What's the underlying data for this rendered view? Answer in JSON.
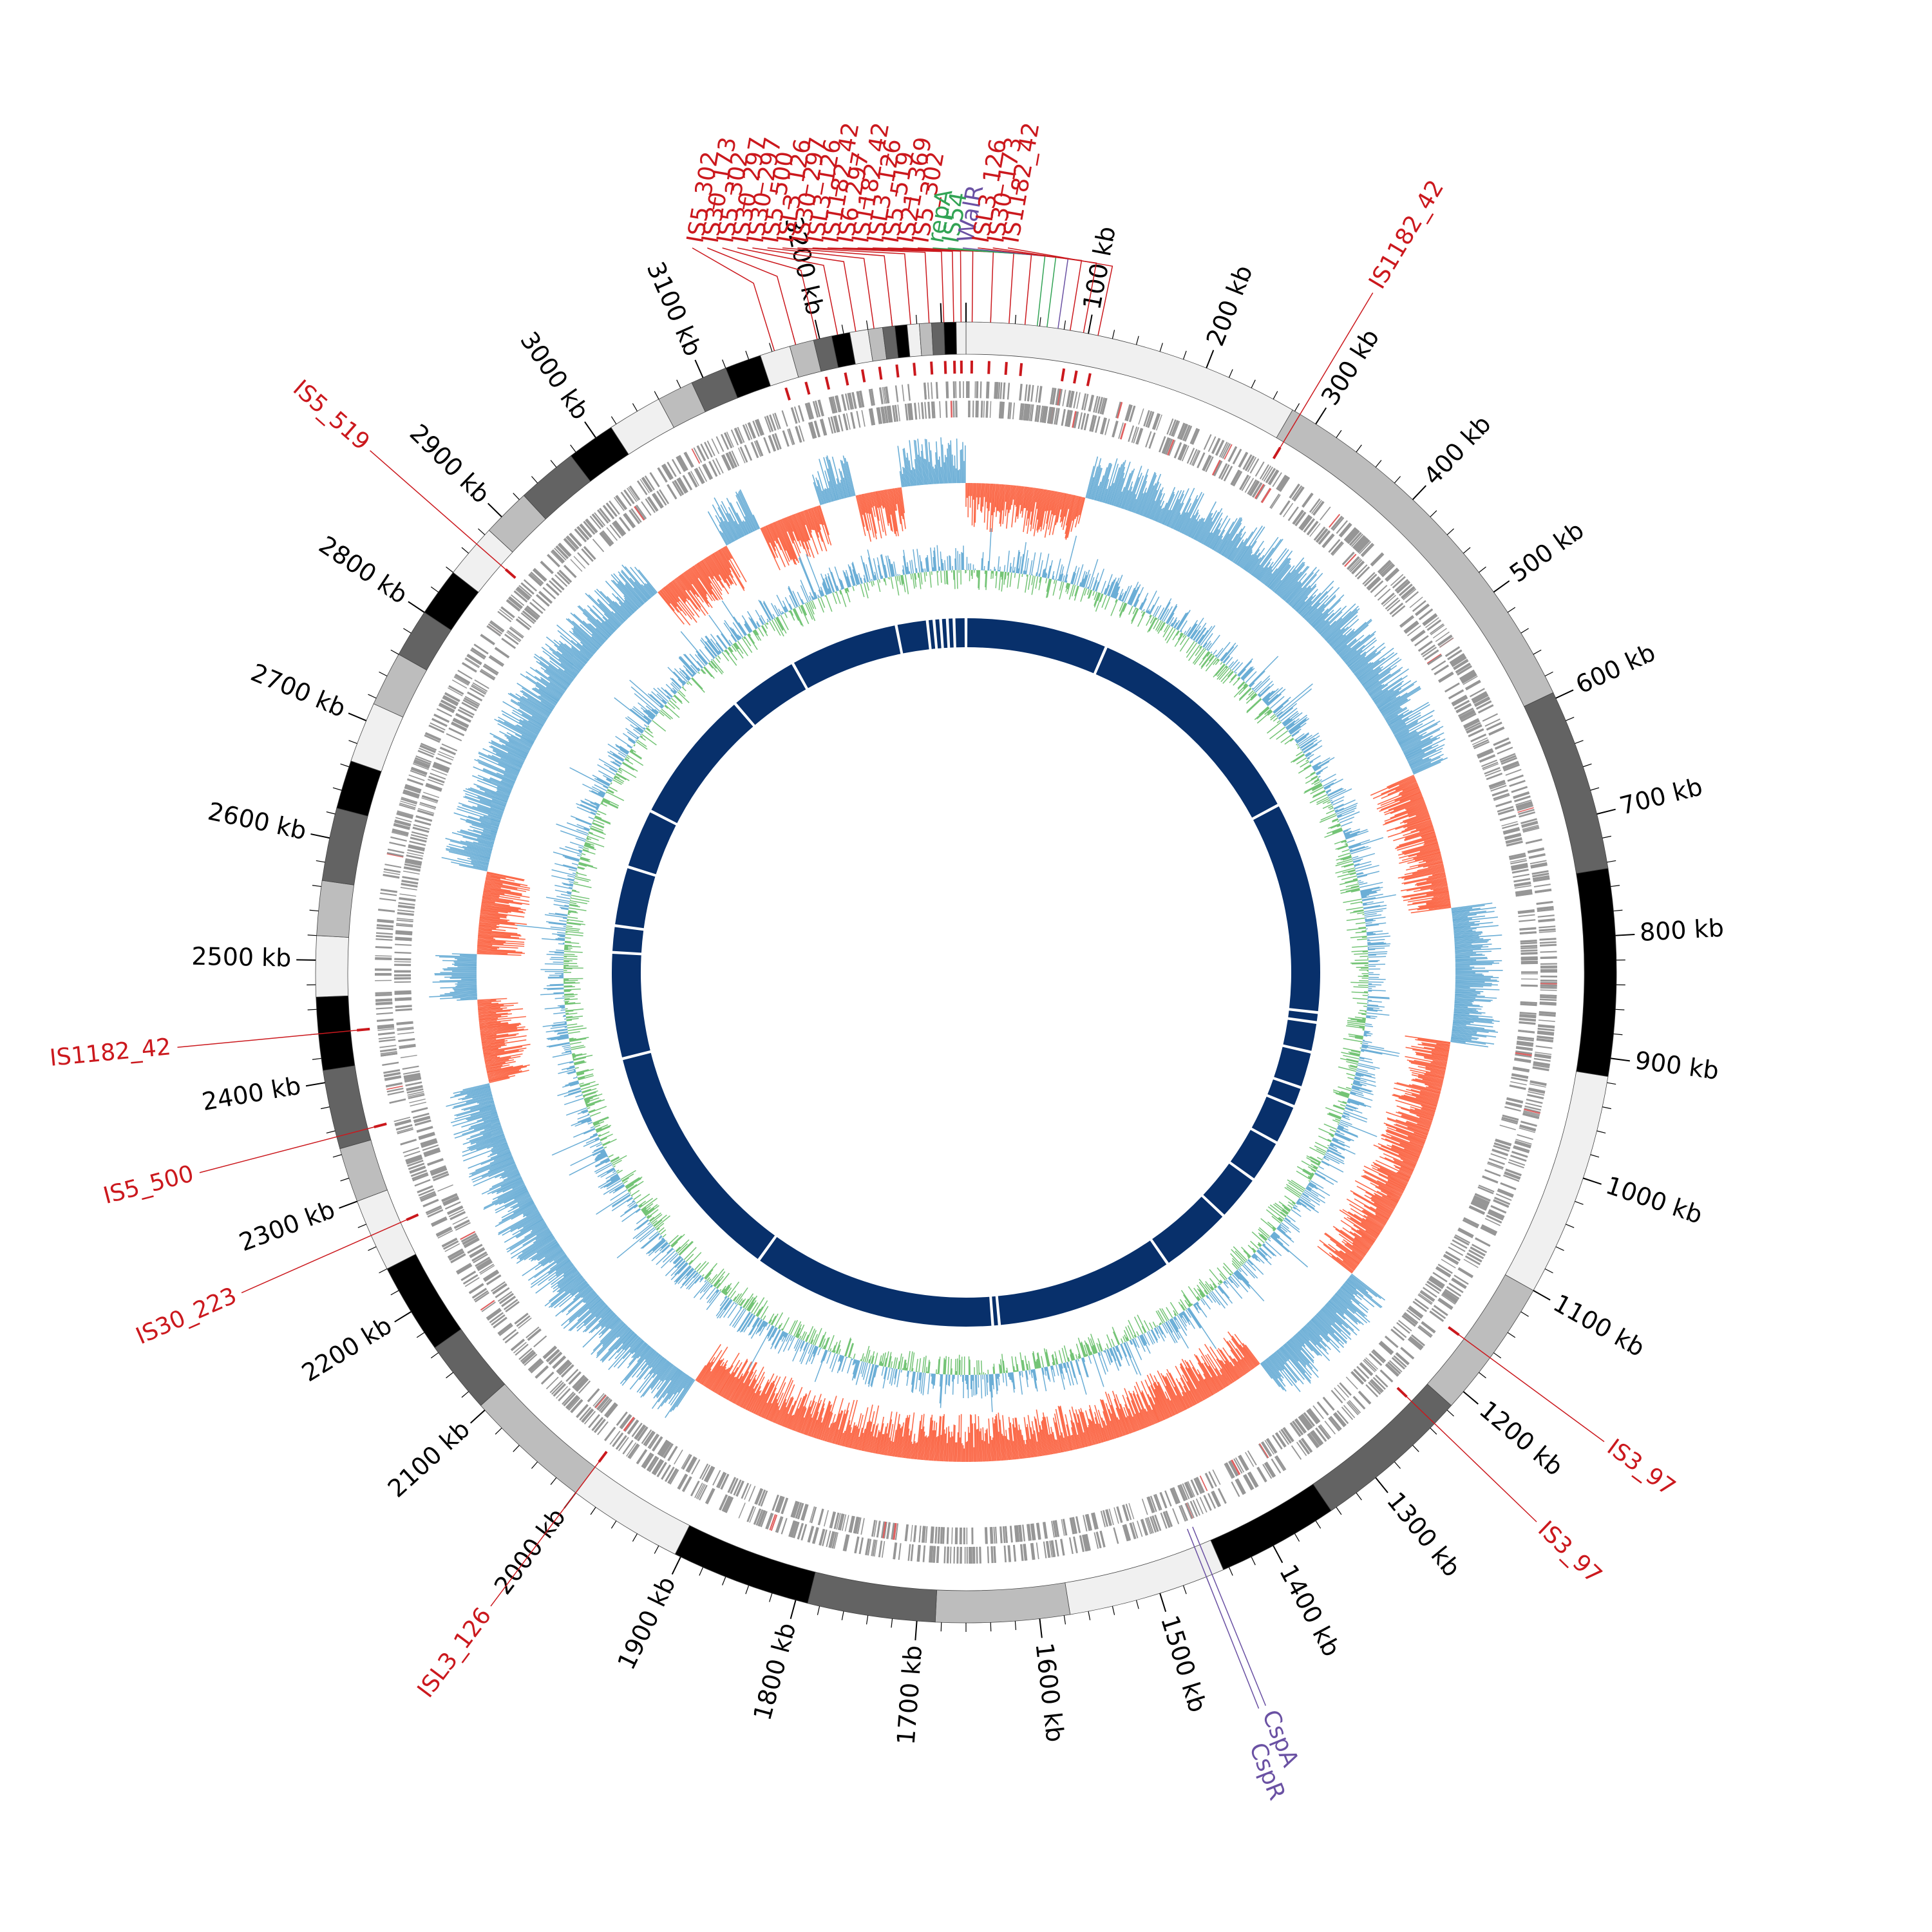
{
  "genome": {
    "total_kb": 3320,
    "tick_labels": [
      "100 kb",
      "200 kb",
      "300 kb",
      "400 kb",
      "500 kb",
      "600 kb",
      "700 kb",
      "800 kb",
      "900 kb",
      "1000 kb",
      "1100 kb",
      "1200 kb",
      "1300 kb",
      "1400 kb",
      "1500 kb",
      "1600 kb",
      "1700 kb",
      "1800 kb",
      "1900 kb",
      "2000 kb",
      "2100 kb",
      "2200 kb",
      "2300 kb",
      "2400 kb",
      "2500 kb",
      "2600 kb",
      "2700 kb",
      "2800 kb",
      "2900 kb",
      "3000 kb",
      "3100 kb",
      "3200 kb"
    ]
  },
  "contig_ring": {
    "colors": [
      "#f0f0f0",
      "#bdbdbd",
      "#636363",
      "#000000"
    ],
    "segments_kb": [
      {
        "start": 0,
        "end": 278
      },
      {
        "start": 278,
        "end": 595
      },
      {
        "start": 595,
        "end": 745
      },
      {
        "start": 745,
        "end": 915
      },
      {
        "start": 915,
        "end": 1100
      },
      {
        "start": 1100,
        "end": 1215
      },
      {
        "start": 1215,
        "end": 1345
      },
      {
        "start": 1345,
        "end": 1445
      },
      {
        "start": 1445,
        "end": 1575
      },
      {
        "start": 1575,
        "end": 1685
      },
      {
        "start": 1685,
        "end": 1790
      },
      {
        "start": 1790,
        "end": 1905
      },
      {
        "start": 1905,
        "end": 2000
      },
      {
        "start": 2000,
        "end": 2105
      },
      {
        "start": 2105,
        "end": 2165
      },
      {
        "start": 2165,
        "end": 2240
      },
      {
        "start": 2240,
        "end": 2300
      },
      {
        "start": 2300,
        "end": 2345
      },
      {
        "start": 2345,
        "end": 2410
      },
      {
        "start": 2410,
        "end": 2470
      },
      {
        "start": 2470,
        "end": 2520
      },
      {
        "start": 2520,
        "end": 2565
      },
      {
        "start": 2565,
        "end": 2625
      },
      {
        "start": 2625,
        "end": 2665
      },
      {
        "start": 2665,
        "end": 2715
      },
      {
        "start": 2715,
        "end": 2760
      },
      {
        "start": 2760,
        "end": 2800
      },
      {
        "start": 2800,
        "end": 2840
      },
      {
        "start": 2840,
        "end": 2885
      },
      {
        "start": 2885,
        "end": 2925
      },
      {
        "start": 2925,
        "end": 2975
      },
      {
        "start": 2975,
        "end": 3015
      },
      {
        "start": 3015,
        "end": 3060
      },
      {
        "start": 3060,
        "end": 3090
      },
      {
        "start": 3090,
        "end": 3120
      },
      {
        "start": 3120,
        "end": 3150
      },
      {
        "start": 3150,
        "end": 3175
      },
      {
        "start": 3175,
        "end": 3195
      },
      {
        "start": 3195,
        "end": 3210
      },
      {
        "start": 3210,
        "end": 3225
      },
      {
        "start": 3225,
        "end": 3240
      },
      {
        "start": 3240,
        "end": 3252
      },
      {
        "start": 3252,
        "end": 3262
      },
      {
        "start": 3262,
        "end": 3272
      },
      {
        "start": 3272,
        "end": 3282
      },
      {
        "start": 3282,
        "end": 3292
      },
      {
        "start": 3292,
        "end": 3302
      },
      {
        "start": 3302,
        "end": 3312
      },
      {
        "start": 3312,
        "end": 3320
      }
    ]
  },
  "inner_ring_gaps_kb": [
    215,
    570,
    890,
    905,
    950,
    1005,
    1035,
    1095,
    1160,
    1230,
    1340,
    1610,
    1620,
    1990,
    2360,
    2520,
    2560,
    2650,
    2740,
    2945,
    3050,
    3215,
    3262,
    3272,
    3282,
    3292,
    3302
  ],
  "track_colors": {
    "cds_track": "#969696",
    "gc_skew_positive": "#6baed6",
    "gc_skew_negative": "#fb6a4a",
    "gc_content": "#74c476",
    "gc_content_high": "#6baed6",
    "inner_ring": "#08306b",
    "mobile_element": "#cb181d",
    "gene_label": "#6a51a3",
    "rep_label": "#31a354"
  },
  "labels": [
    {
      "text": "IS5_302",
      "kb": 3162,
      "type": "mobile"
    },
    {
      "text": "IS30_173",
      "kb": 3180,
      "type": "mobile"
    },
    {
      "text": "IS5_302",
      "kb": 3198,
      "type": "mobile"
    },
    {
      "text": "IS30_297",
      "kb": 3215,
      "type": "mobile"
    },
    {
      "text": "IS30_297",
      "kb": 3230,
      "type": "mobile"
    },
    {
      "text": "IS5_500",
      "kb": 3245,
      "type": "mobile"
    },
    {
      "text": "ISL3_126",
      "kb": 3260,
      "type": "mobile"
    },
    {
      "text": "IS30_297",
      "kb": 3275,
      "type": "mobile"
    },
    {
      "text": "ISL3_126",
      "kb": 3290,
      "type": "mobile"
    },
    {
      "text": "IS1182_42",
      "kb": 3302,
      "type": "mobile"
    },
    {
      "text": "IS6_297",
      "kb": 3310,
      "type": "mobile"
    },
    {
      "text": "IS1182_42",
      "kb": 3316,
      "type": "mobile"
    },
    {
      "text": "ISL3_126",
      "kb": 5,
      "type": "mobile"
    },
    {
      "text": "IS5_519",
      "kb": 20,
      "type": "mobile"
    },
    {
      "text": "IS21_369",
      "kb": 35,
      "type": "mobile"
    },
    {
      "text": "IS5_302",
      "kb": 48,
      "type": "mobile"
    },
    {
      "text": "repA",
      "kb": 58,
      "type": "rep"
    },
    {
      "text": "IS54",
      "kb": 66,
      "type": "rep"
    },
    {
      "text": "WalR",
      "kb": 75,
      "type": "gene"
    },
    {
      "text": "ISL3_126",
      "kb": 85,
      "type": "mobile"
    },
    {
      "text": "IS30_173",
      "kb": 96,
      "type": "mobile"
    },
    {
      "text": "IS1182_42",
      "kb": 108,
      "type": "mobile"
    },
    {
      "text": "IS1182_42",
      "kb": 285,
      "type": "mobile"
    },
    {
      "text": "IS3_97",
      "kb": 1165,
      "type": "mobile"
    },
    {
      "text": "IS3_97",
      "kb": 1235,
      "type": "mobile"
    },
    {
      "text": "CspA",
      "kb": 1455,
      "type": "gene"
    },
    {
      "text": "CspR",
      "kb": 1460,
      "type": "gene"
    },
    {
      "text": "ISL3_126",
      "kb": 2000,
      "type": "mobile"
    },
    {
      "text": "IS30_223",
      "kb": 2270,
      "type": "mobile"
    },
    {
      "text": "IS5_500",
      "kb": 2355,
      "type": "mobile"
    },
    {
      "text": "IS1182_42",
      "kb": 2440,
      "type": "mobile"
    },
    {
      "text": "IS5_519",
      "kb": 2870,
      "type": "mobile"
    }
  ],
  "gc_skew_profile": [
    {
      "start": 0,
      "end": 130,
      "sign": -1
    },
    {
      "start": 130,
      "end": 610,
      "sign": 1
    },
    {
      "start": 610,
      "end": 760,
      "sign": -1
    },
    {
      "start": 760,
      "end": 905,
      "sign": 1
    },
    {
      "start": 905,
      "end": 1180,
      "sign": -1
    },
    {
      "start": 1180,
      "end": 1320,
      "sign": 1
    },
    {
      "start": 1320,
      "end": 1970,
      "sign": -1
    },
    {
      "start": 1970,
      "end": 2370,
      "sign": 1
    },
    {
      "start": 2370,
      "end": 2460,
      "sign": -1
    },
    {
      "start": 2460,
      "end": 2510,
      "sign": 1
    },
    {
      "start": 2510,
      "end": 2600,
      "sign": -1
    },
    {
      "start": 2600,
      "end": 2960,
      "sign": 1
    },
    {
      "start": 2960,
      "end": 3050,
      "sign": -1
    },
    {
      "start": 3050,
      "end": 3090,
      "sign": 1
    },
    {
      "start": 3090,
      "end": 3160,
      "sign": -1
    },
    {
      "start": 3160,
      "end": 3200,
      "sign": 1
    },
    {
      "start": 3200,
      "end": 3250,
      "sign": -1
    },
    {
      "start": 3250,
      "end": 3320,
      "sign": 1
    }
  ]
}
